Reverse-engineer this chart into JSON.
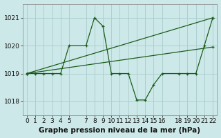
{
  "title": "Graphe pression niveau de la mer (hPa)",
  "bg_color": "#cce8e8",
  "grid_color": "#aacccc",
  "line_color": "#1a5c1a",
  "x_ticks": [
    0,
    1,
    2,
    3,
    4,
    5,
    7,
    8,
    9,
    10,
    11,
    12,
    13,
    14,
    15,
    16,
    18,
    19,
    20,
    21,
    22
  ],
  "ylim": [
    1017.5,
    1021.5
  ],
  "yticks": [
    1018,
    1019,
    1020,
    1021
  ],
  "series1_x": [
    0,
    1,
    2,
    3,
    4,
    5,
    7,
    8,
    9,
    10,
    11,
    12,
    13,
    14,
    15,
    16,
    18,
    19,
    20,
    21,
    22
  ],
  "series1_y": [
    1019.0,
    1019.0,
    1019.0,
    1019.0,
    1019.0,
    1020.0,
    1020.0,
    1021.0,
    1020.7,
    1019.0,
    1019.0,
    1019.0,
    1018.05,
    1018.05,
    1018.6,
    1019.0,
    1019.0,
    1019.0,
    1019.0,
    1020.0,
    1021.0
  ],
  "series2_x": [
    0,
    22
  ],
  "series2_y": [
    1019.0,
    1021.0
  ],
  "series3_x": [
    0,
    22
  ],
  "series3_y": [
    1019.0,
    1019.95
  ],
  "tick_fontsize": 6.5,
  "title_fontsize": 7.5
}
